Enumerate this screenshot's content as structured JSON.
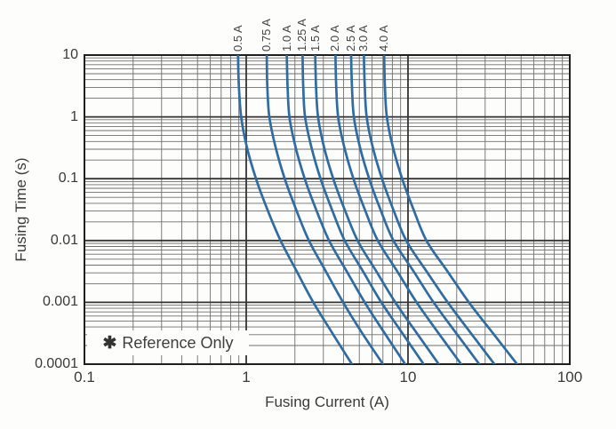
{
  "colors": {
    "curve": "#2e6ca3",
    "grid_minor": "#6f6f6f",
    "grid_major": "#343434",
    "spine": "#1f1f1f",
    "text": "#3c3c3c",
    "background": "#fdfdfc"
  },
  "annotation": {
    "marker": "✱",
    "text": "Reference Only"
  },
  "chart_data": {
    "type": "line",
    "title": "",
    "xlabel": "Fusing Current (A)",
    "ylabel": "Fusing Time (s)",
    "x_axis": {
      "scale": "log",
      "min": 0.1,
      "max": 100,
      "ticks": [
        {
          "v": 0.1,
          "label": "0.1"
        },
        {
          "v": 1,
          "label": "1"
        },
        {
          "v": 10,
          "label": "10"
        },
        {
          "v": 100,
          "label": "100"
        }
      ]
    },
    "y_axis": {
      "scale": "log",
      "min": 0.0001,
      "max": 10,
      "ticks": [
        {
          "v": 10,
          "label": "10"
        },
        {
          "v": 1,
          "label": "1"
        },
        {
          "v": 0.1,
          "label": "0.1"
        },
        {
          "v": 0.01,
          "label": "0.01"
        },
        {
          "v": 0.001,
          "label": "0.001"
        },
        {
          "v": 0.0001,
          "label": "0.0001"
        }
      ]
    },
    "grid": "log-log full minor grid",
    "legend_position": "labels rotated above top edge of plot",
    "series": [
      {
        "name": "0.5 A",
        "rating_amps": 0.5,
        "points": [
          [
            0.89,
            10
          ],
          [
            0.9,
            3.2
          ],
          [
            0.93,
            1
          ],
          [
            1.01,
            0.32
          ],
          [
            1.15,
            0.1
          ],
          [
            1.35,
            0.032
          ],
          [
            1.63,
            0.01
          ],
          [
            2.05,
            0.0032
          ],
          [
            2.6,
            0.001
          ],
          [
            3.4,
            0.00032
          ],
          [
            4.5,
            0.0001
          ]
        ]
      },
      {
        "name": "0.75 A",
        "rating_amps": 0.75,
        "points": [
          [
            1.34,
            10
          ],
          [
            1.35,
            3.2
          ],
          [
            1.39,
            1
          ],
          [
            1.52,
            0.32
          ],
          [
            1.73,
            0.1
          ],
          [
            2.03,
            0.032
          ],
          [
            2.44,
            0.01
          ],
          [
            3.1,
            0.0032
          ],
          [
            3.97,
            0.001
          ],
          [
            5.2,
            0.00032
          ],
          [
            7.0,
            0.0001
          ]
        ]
      },
      {
        "name": "1.0 A",
        "rating_amps": 1.0,
        "points": [
          [
            1.78,
            10
          ],
          [
            1.8,
            3.2
          ],
          [
            1.85,
            1
          ],
          [
            2.02,
            0.32
          ],
          [
            2.3,
            0.1
          ],
          [
            2.7,
            0.032
          ],
          [
            3.25,
            0.01
          ],
          [
            4.17,
            0.0032
          ],
          [
            5.4,
            0.001
          ],
          [
            7.15,
            0.00032
          ],
          [
            9.6,
            0.0001
          ]
        ]
      },
      {
        "name": "1.25 A",
        "rating_amps": 1.25,
        "points": [
          [
            2.23,
            10
          ],
          [
            2.25,
            3.2
          ],
          [
            2.31,
            1
          ],
          [
            2.53,
            0.32
          ],
          [
            2.88,
            0.1
          ],
          [
            3.38,
            0.032
          ],
          [
            4.06,
            0.01
          ],
          [
            5.26,
            0.0032
          ],
          [
            6.84,
            0.001
          ],
          [
            9.2,
            0.00032
          ],
          [
            12.5,
            0.0001
          ]
        ]
      },
      {
        "name": "1.5 A",
        "rating_amps": 1.5,
        "points": [
          [
            2.67,
            10
          ],
          [
            2.7,
            3.2
          ],
          [
            2.78,
            1
          ],
          [
            3.03,
            0.32
          ],
          [
            3.45,
            0.1
          ],
          [
            4.05,
            0.032
          ],
          [
            4.88,
            0.01
          ],
          [
            6.36,
            0.0032
          ],
          [
            8.35,
            0.001
          ],
          [
            11.3,
            0.00032
          ],
          [
            15.5,
            0.0001
          ]
        ]
      },
      {
        "name": "2.0 A",
        "rating_amps": 2.0,
        "points": [
          [
            3.56,
            10
          ],
          [
            3.6,
            3.2
          ],
          [
            3.7,
            1
          ],
          [
            4.04,
            0.32
          ],
          [
            4.6,
            0.1
          ],
          [
            5.4,
            0.032
          ],
          [
            6.5,
            0.01
          ],
          [
            8.56,
            0.0032
          ],
          [
            11.3,
            0.001
          ],
          [
            15.4,
            0.00032
          ],
          [
            21.3,
            0.0001
          ]
        ]
      },
      {
        "name": "2.5 A",
        "rating_amps": 2.5,
        "points": [
          [
            4.45,
            10
          ],
          [
            4.5,
            3.2
          ],
          [
            4.63,
            1
          ],
          [
            5.05,
            0.32
          ],
          [
            5.75,
            0.1
          ],
          [
            6.75,
            0.032
          ],
          [
            8.13,
            0.01
          ],
          [
            10.8,
            0.0032
          ],
          [
            14.4,
            0.001
          ],
          [
            19.8,
            0.00032
          ],
          [
            27.6,
            0.0001
          ]
        ]
      },
      {
        "name": "3.0 A",
        "rating_amps": 3.0,
        "points": [
          [
            5.34,
            10
          ],
          [
            5.4,
            3.2
          ],
          [
            5.55,
            1
          ],
          [
            6.06,
            0.32
          ],
          [
            6.9,
            0.1
          ],
          [
            8.1,
            0.032
          ],
          [
            9.75,
            0.01
          ],
          [
            13.0,
            0.0032
          ],
          [
            17.6,
            0.001
          ],
          [
            24.4,
            0.00032
          ],
          [
            34.2,
            0.0001
          ]
        ]
      },
      {
        "name": "4.0 A",
        "rating_amps": 4.0,
        "points": [
          [
            7.12,
            10
          ],
          [
            7.2,
            3.2
          ],
          [
            7.4,
            1
          ],
          [
            8.08,
            0.32
          ],
          [
            9.2,
            0.1
          ],
          [
            10.8,
            0.032
          ],
          [
            13.0,
            0.01
          ],
          [
            17.5,
            0.0032
          ],
          [
            23.8,
            0.001
          ],
          [
            33.4,
            0.00032
          ],
          [
            47.2,
            0.0001
          ]
        ]
      }
    ]
  }
}
